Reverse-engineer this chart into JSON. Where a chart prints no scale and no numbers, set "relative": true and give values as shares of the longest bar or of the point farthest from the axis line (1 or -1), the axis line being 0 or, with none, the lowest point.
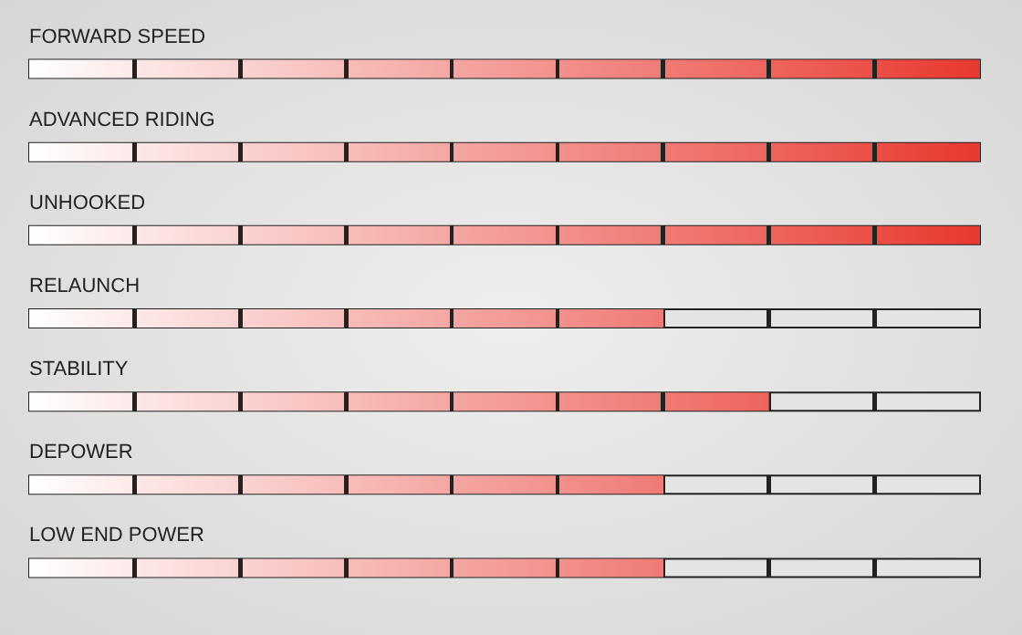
{
  "chart_data": {
    "type": "bar",
    "orientation": "horizontal",
    "relative": true,
    "categories": [
      "FORWARD SPEED",
      "ADVANCED RIDING",
      "UNHOOKED",
      "RELAUNCH",
      "STABILITY",
      "DEPOWER",
      "LOW END POWER"
    ],
    "values": [
      1,
      1,
      1,
      0.667,
      0.778,
      0.667,
      0.667
    ],
    "color": "#e8382f"
  }
}
